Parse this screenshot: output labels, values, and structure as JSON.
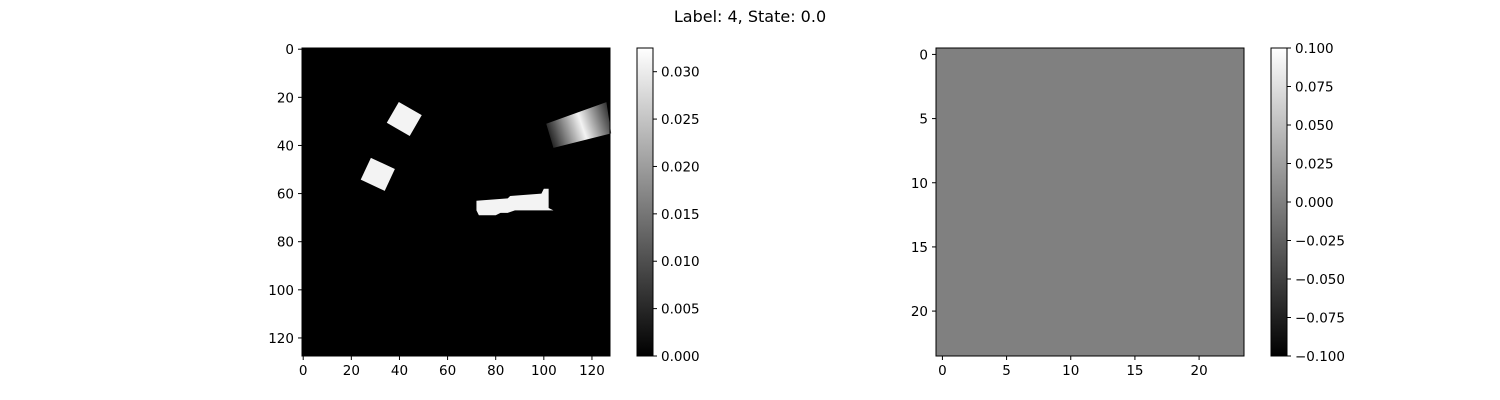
{
  "suptitle": "Label: 4, State: 0.0",
  "chart_data": [
    {
      "type": "heatmap",
      "colormap": "gray",
      "image_size": [
        128,
        128
      ],
      "background_value": 0.0,
      "x_ticks": [
        0,
        20,
        40,
        60,
        80,
        100,
        120
      ],
      "y_ticks": [
        0,
        20,
        40,
        60,
        80,
        100,
        120
      ],
      "colorbar": {
        "min": 0.0,
        "max": 0.0325,
        "ticks": [
          "0.000",
          "0.005",
          "0.010",
          "0.015",
          "0.020",
          "0.025",
          "0.030"
        ]
      },
      "objects": [
        {
          "shape": "rotated-rect",
          "center": [
            42,
            29
          ],
          "width": 11,
          "height": 10,
          "angle_deg": 30,
          "value": 0.031
        },
        {
          "shape": "rotated-rect",
          "center": [
            31,
            52
          ],
          "width": 11,
          "height": 10,
          "angle_deg": 25,
          "value": 0.031
        },
        {
          "shape": "polygon",
          "points": [
            [
              72,
              63
            ],
            [
              85,
              62
            ],
            [
              86,
              61
            ],
            [
              99,
              60
            ],
            [
              100,
              58
            ],
            [
              102,
              58
            ],
            [
              102,
              66
            ],
            [
              104,
              67
            ],
            [
              88,
              67
            ],
            [
              85,
              68
            ],
            [
              82,
              68
            ],
            [
              80,
              69
            ],
            [
              73,
              69
            ],
            [
              72,
              67
            ]
          ],
          "value": 0.031
        },
        {
          "shape": "gradient-band",
          "points": [
            [
              101,
              31
            ],
            [
              126,
              22
            ],
            [
              128,
              35
            ],
            [
              104,
              41
            ]
          ],
          "stops": [
            [
              0,
              0.003
            ],
            [
              0.55,
              0.031
            ],
            [
              1,
              0.007
            ]
          ]
        }
      ]
    },
    {
      "type": "heatmap",
      "colormap": "gray",
      "image_size": [
        24,
        24
      ],
      "background_value": 0.0,
      "x_ticks": [
        0,
        5,
        10,
        15,
        20
      ],
      "y_ticks": [
        0,
        5,
        10,
        15,
        20
      ],
      "colorbar": {
        "min": -0.1,
        "max": 0.1,
        "ticks": [
          "-0.100",
          "-0.075",
          "-0.050",
          "-0.025",
          "0.000",
          "0.025",
          "0.050",
          "0.075",
          "0.100"
        ]
      },
      "fill_color": "#808080"
    }
  ]
}
